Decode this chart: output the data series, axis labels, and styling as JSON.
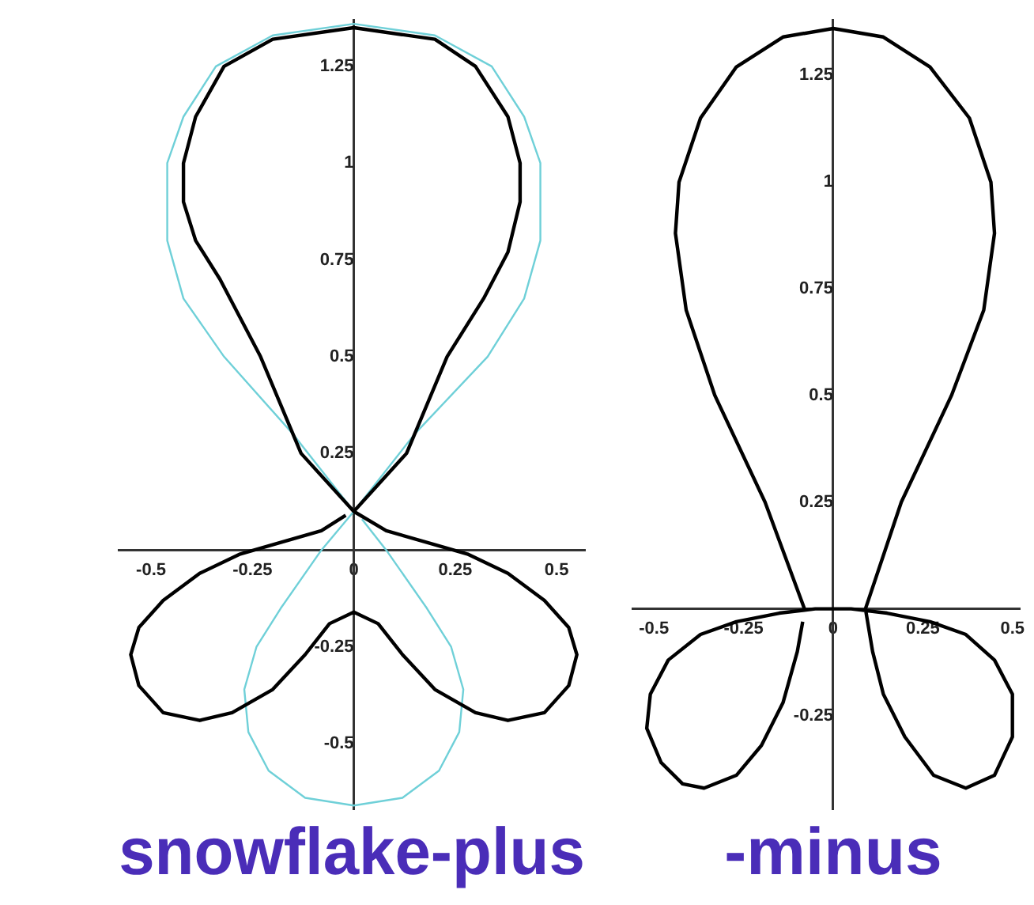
{
  "chart_data": [
    {
      "type": "line",
      "title": "snowflake-plus",
      "xlim": [
        -0.58,
        0.57
      ],
      "ylim": [
        -0.67,
        1.37
      ],
      "xticks": [
        -0.5,
        -0.25,
        0,
        0.25,
        0.5
      ],
      "yticks": [
        -0.5,
        -0.25,
        0.25,
        0.5,
        0.75,
        1,
        1.25
      ],
      "grid": false,
      "legend": false,
      "marker": "none",
      "series": [
        {
          "color": "#000000",
          "x": [
            0,
            -0.13,
            -0.23,
            -0.33,
            -0.39,
            -0.42,
            -0.42,
            -0.39,
            -0.32,
            -0.2,
            0,
            0.2,
            0.3,
            0.38,
            0.41,
            0.41,
            0.38,
            0.32,
            0.23,
            0.13,
            0,
            0.08,
            0.18,
            0.28,
            0.38,
            0.47,
            0.53,
            0.55,
            0.53,
            0.47,
            0.38,
            0.3,
            0.2,
            0.12,
            0.06,
            0,
            -0.06,
            -0.12,
            -0.2,
            -0.3,
            -0.38,
            -0.47,
            -0.53,
            -0.55,
            -0.53,
            -0.47,
            -0.38,
            -0.28,
            -0.18,
            -0.08,
            -0.02
          ],
          "values": [
            0.1,
            0.25,
            0.5,
            0.7,
            0.8,
            0.9,
            1.0,
            1.12,
            1.25,
            1.32,
            1.35,
            1.32,
            1.25,
            1.12,
            1.0,
            0.9,
            0.77,
            0.65,
            0.5,
            0.25,
            0.1,
            0.05,
            0.02,
            -0.01,
            -0.06,
            -0.13,
            -0.2,
            -0.27,
            -0.35,
            -0.42,
            -0.44,
            -0.42,
            -0.36,
            -0.27,
            -0.19,
            -0.16,
            -0.19,
            -0.27,
            -0.36,
            -0.42,
            -0.44,
            -0.42,
            -0.35,
            -0.27,
            -0.2,
            -0.13,
            -0.06,
            -0.01,
            0.02,
            0.05,
            0.09
          ]
        },
        {
          "color": "#6fd0d8",
          "x": [
            0,
            -0.15,
            -0.32,
            -0.42,
            -0.46,
            -0.46,
            -0.42,
            -0.34,
            -0.2,
            0,
            0.2,
            0.34,
            0.42,
            0.46,
            0.46,
            0.42,
            0.33,
            0.15,
            0,
            -0.08,
            -0.18,
            -0.24,
            -0.27,
            -0.26,
            -0.21,
            -0.12,
            0,
            0.12,
            0.21,
            0.26,
            0.27,
            0.24,
            0.18,
            0.08,
            0.02
          ],
          "values": [
            0.1,
            0.3,
            0.5,
            0.65,
            0.8,
            1.0,
            1.12,
            1.25,
            1.33,
            1.36,
            1.33,
            1.25,
            1.12,
            1.0,
            0.8,
            0.65,
            0.5,
            0.3,
            0.1,
            0,
            -0.15,
            -0.25,
            -0.36,
            -0.47,
            -0.57,
            -0.64,
            -0.66,
            -0.64,
            -0.57,
            -0.47,
            -0.36,
            -0.25,
            -0.15,
            0,
            0.08
          ]
        }
      ]
    },
    {
      "type": "line",
      "title": "-minus",
      "xlim": [
        -0.56,
        0.52
      ],
      "ylim": [
        -0.47,
        1.38
      ],
      "xticks": [
        -0.5,
        -0.25,
        0,
        0.25,
        0.5
      ],
      "yticks": [
        -0.25,
        0.25,
        0.5,
        0.75,
        1,
        1.25
      ],
      "grid": false,
      "legend": false,
      "marker": "none",
      "series": [
        {
          "color": "#000000",
          "x": [
            -0.08,
            -0.19,
            -0.33,
            -0.41,
            -0.44,
            -0.43,
            -0.37,
            -0.27,
            -0.14,
            0,
            0.14,
            0.27,
            0.38,
            0.44,
            0.45,
            0.42,
            0.33,
            0.19,
            0.09,
            0.11,
            0.14,
            0.2,
            0.28,
            0.37,
            0.45,
            0.5,
            0.5,
            0.45,
            0.37,
            0.27,
            0.15,
            0.05,
            -0.05,
            -0.15,
            -0.27,
            -0.37,
            -0.46,
            -0.51,
            -0.52,
            -0.48,
            -0.42,
            -0.36,
            -0.27,
            -0.2,
            -0.14,
            -0.1,
            -0.085
          ],
          "values": [
            0,
            0.25,
            0.5,
            0.7,
            0.88,
            1.0,
            1.15,
            1.27,
            1.34,
            1.36,
            1.34,
            1.27,
            1.15,
            1.0,
            0.88,
            0.7,
            0.5,
            0.25,
            0,
            -0.1,
            -0.2,
            -0.3,
            -0.39,
            -0.42,
            -0.39,
            -0.3,
            -0.2,
            -0.12,
            -0.06,
            -0.03,
            -0.01,
            0,
            0,
            -0.01,
            -0.03,
            -0.06,
            -0.12,
            -0.2,
            -0.28,
            -0.36,
            -0.41,
            -0.42,
            -0.39,
            -0.32,
            -0.22,
            -0.1,
            -0.03
          ]
        }
      ]
    }
  ]
}
